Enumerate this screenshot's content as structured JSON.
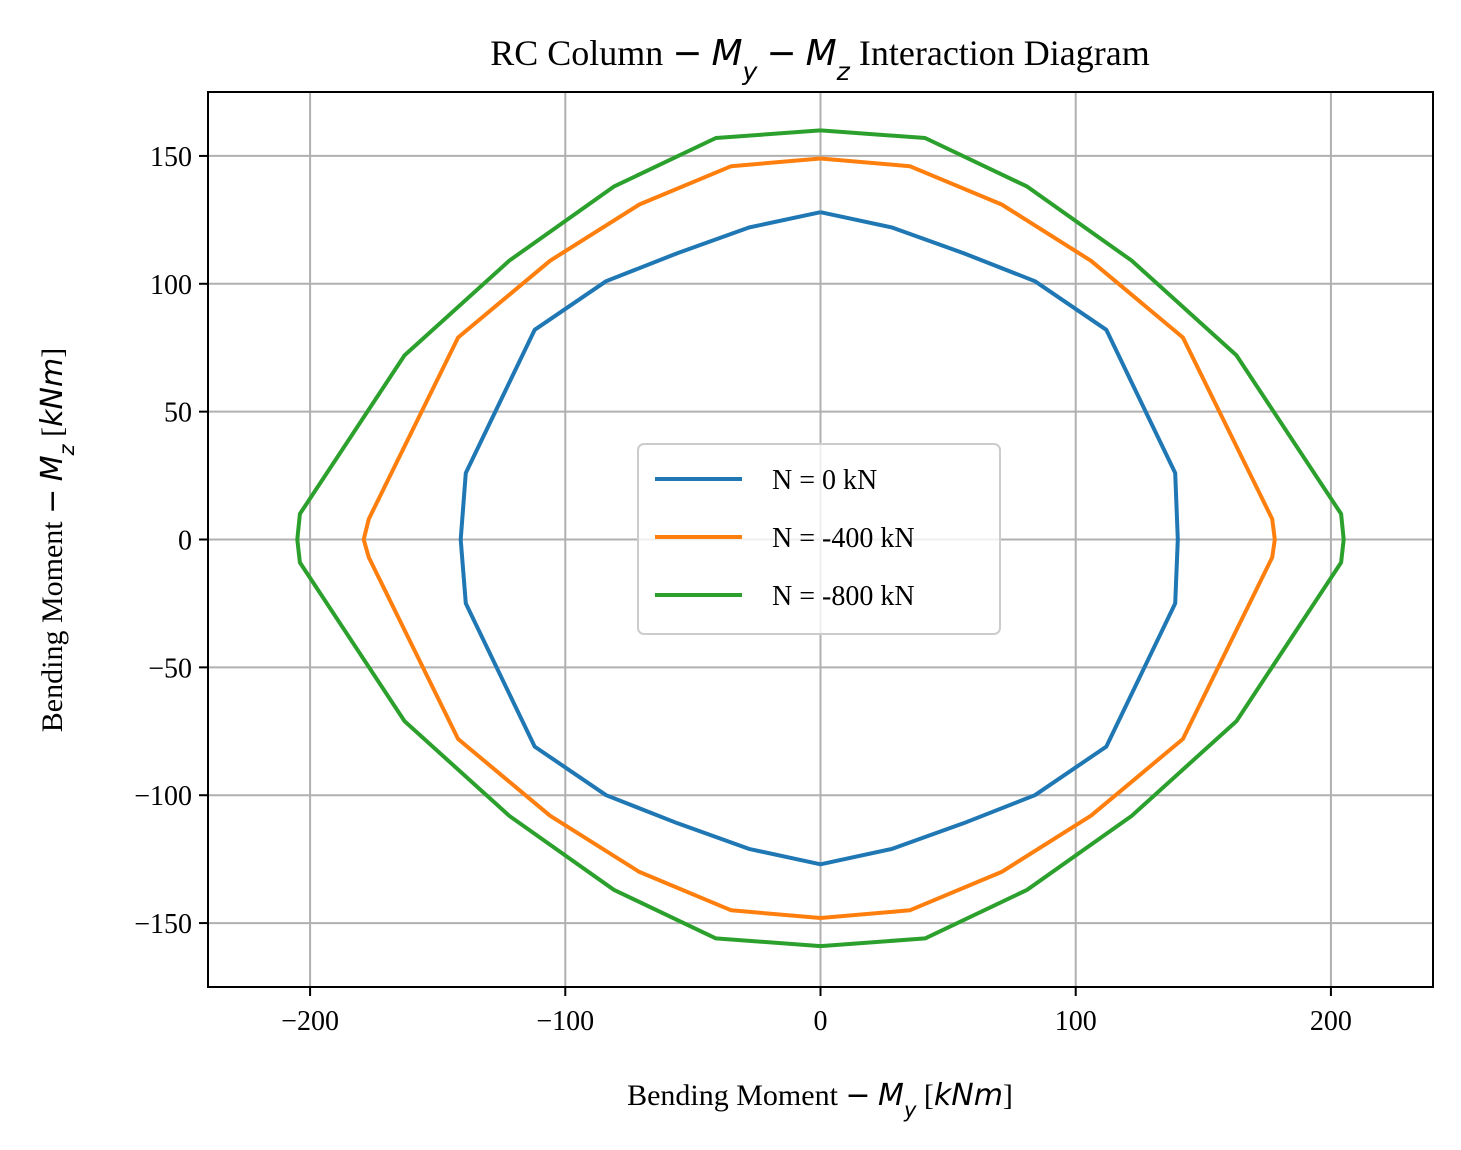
{
  "chart_data": {
    "type": "line",
    "title": "RC Column − My − Mz Interaction Diagram",
    "xlabel": "Bending Moment − My [kNm]",
    "ylabel": "Bending Moment − Mz [kNm]",
    "xlim": [
      -240,
      240
    ],
    "ylim": [
      -175,
      175
    ],
    "xticks": [
      -200,
      -100,
      0,
      100,
      200
    ],
    "yticks": [
      -150,
      -100,
      -50,
      0,
      50,
      100,
      150
    ],
    "xtick_labels": [
      "−200",
      "−100",
      "0",
      "100",
      "200"
    ],
    "ytick_labels": [
      "−150",
      "−100",
      "−50",
      "0",
      "50",
      "100",
      "150"
    ],
    "grid": true,
    "legend_position": "center",
    "series": [
      {
        "name": "N = 0 kN",
        "color": "#1f77b4",
        "x": [
          0,
          28,
          56,
          84,
          112,
          139,
          140,
          139,
          112,
          84,
          56,
          28,
          0,
          -28,
          -56,
          -84,
          -112,
          -139,
          -141,
          -139,
          -112,
          -84,
          -56,
          -28,
          0
        ],
        "y": [
          128,
          122,
          112,
          101,
          82,
          26,
          0,
          -25,
          -81,
          -100,
          -111,
          -121,
          -127,
          -121,
          -111,
          -100,
          -81,
          -25,
          0,
          26,
          82,
          101,
          112,
          122,
          128
        ]
      },
      {
        "name": "N = -400 kN",
        "color": "#ff7f0e",
        "x": [
          0,
          35,
          71,
          106,
          142,
          177,
          178,
          177,
          142,
          106,
          71,
          35,
          0,
          -35,
          -71,
          -106,
          -142,
          -177,
          -179,
          -177,
          -142,
          -106,
          -71,
          -35,
          0
        ],
        "y": [
          149,
          146,
          131,
          109,
          79,
          8,
          0,
          -7,
          -78,
          -108,
          -130,
          -145,
          -148,
          -145,
          -130,
          -108,
          -78,
          -7,
          0,
          8,
          79,
          109,
          131,
          146,
          149
        ]
      },
      {
        "name": "N = -800 kN",
        "color": "#2ca02c",
        "x": [
          0,
          41,
          81,
          122,
          163,
          204,
          205,
          204,
          163,
          122,
          81,
          41,
          0,
          -41,
          -81,
          -122,
          -163,
          -204,
          -205,
          -204,
          -163,
          -122,
          -81,
          -41,
          0
        ],
        "y": [
          160,
          157,
          138,
          109,
          72,
          10,
          0,
          -9,
          -71,
          -108,
          -137,
          -156,
          -159,
          -156,
          -137,
          -108,
          -71,
          -9,
          0,
          10,
          72,
          109,
          138,
          157,
          160
        ]
      }
    ]
  }
}
